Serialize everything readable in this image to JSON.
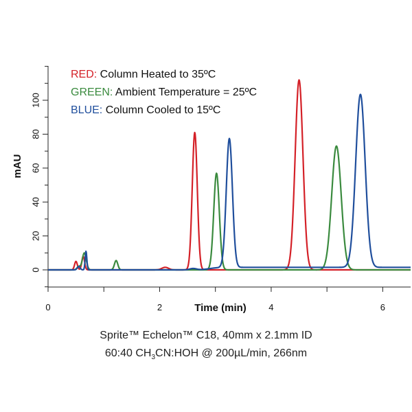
{
  "chart_data": {
    "type": "line",
    "xlabel": "Time (min)",
    "ylabel": "mAU",
    "xlim": [
      0,
      6.5
    ],
    "ylim": [
      -12,
      120
    ],
    "x_ticks": [
      0,
      2,
      4,
      6
    ],
    "y_ticks": [
      0,
      20,
      40,
      60,
      80,
      100
    ],
    "legend": [
      {
        "key": "RED:",
        "text": " Column Heated to 35ºC",
        "color": "#d42027"
      },
      {
        "key": "GREEN:",
        "text": " Ambient Temperature = 25ºC",
        "color": "#3a8a3e"
      },
      {
        "key": "BLUE:",
        "text": " Column Cooled to 15ºC",
        "color": "#1f4e9c"
      }
    ],
    "series": [
      {
        "color": "#d42027",
        "baseline": 0,
        "peaks": [
          {
            "t": 0.5,
            "h": 5,
            "w": 0.025
          },
          {
            "t": 0.63,
            "h": 8,
            "w": 0.025
          },
          {
            "t": 2.1,
            "h": 1.5,
            "w": 0.06
          },
          {
            "t": 2.63,
            "h": 81,
            "w": 0.045
          },
          {
            "t": 4.5,
            "h": 112,
            "w": 0.07
          }
        ]
      },
      {
        "color": "#3a8a3e",
        "baseline": 0,
        "peaks": [
          {
            "t": 0.55,
            "h": 2,
            "w": 0.03
          },
          {
            "t": 0.65,
            "h": 10,
            "w": 0.035
          },
          {
            "t": 1.22,
            "h": 5.5,
            "w": 0.03
          },
          {
            "t": 3.02,
            "h": 57,
            "w": 0.05
          },
          {
            "t": 5.17,
            "h": 73,
            "w": 0.085
          }
        ]
      },
      {
        "color": "#1f4e9c",
        "baseline": 1.5,
        "peaks": [
          {
            "t": 0.55,
            "h": 2,
            "w": 0.025
          },
          {
            "t": 0.68,
            "h": 11,
            "w": 0.015
          },
          {
            "t": 2.6,
            "h": 0.8,
            "w": 0.06
          },
          {
            "t": 3.25,
            "h": 76,
            "w": 0.055
          },
          {
            "t": 5.6,
            "h": 102,
            "w": 0.085
          }
        ]
      }
    ]
  },
  "caption": {
    "line1": "Sprite™ Echelon™ C18, 40mm x 2.1mm ID",
    "line2_pre": "60:40 CH",
    "line2_sub": "3",
    "line2_post": "CN:HOH @ 200µL/min, 266nm"
  }
}
